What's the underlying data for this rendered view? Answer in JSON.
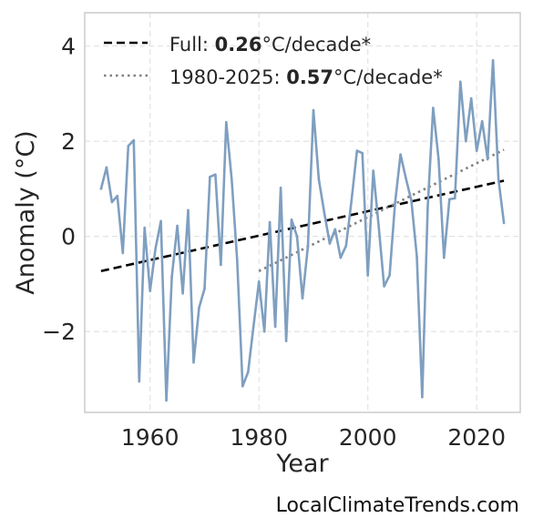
{
  "chart_data": {
    "type": "line",
    "xlabel": "Year",
    "ylabel": "Anomaly (°C)",
    "xlim": [
      1948,
      2028
    ],
    "ylim": [
      -3.7,
      4.7
    ],
    "xticks": [
      1960,
      1980,
      2000,
      2020
    ],
    "yticks": [
      4,
      2,
      0,
      -2
    ],
    "ytick_labels": [
      "4",
      "2",
      "0",
      "−2"
    ],
    "grid": true,
    "legend_position": "top-left",
    "colors": {
      "series": "#7f9fc0",
      "full_trend": "#000000",
      "recent_trend": "#808080"
    },
    "x": [
      1951,
      1952,
      1953,
      1954,
      1955,
      1956,
      1957,
      1958,
      1959,
      1960,
      1961,
      1962,
      1963,
      1964,
      1965,
      1966,
      1967,
      1968,
      1969,
      1970,
      1971,
      1972,
      1973,
      1974,
      1975,
      1976,
      1977,
      1978,
      1979,
      1980,
      1981,
      1982,
      1983,
      1984,
      1985,
      1986,
      1987,
      1988,
      1989,
      1990,
      1991,
      1992,
      1993,
      1994,
      1995,
      1996,
      1997,
      1998,
      1999,
      2000,
      2001,
      2002,
      2003,
      2004,
      2005,
      2006,
      2007,
      2008,
      2009,
      2010,
      2011,
      2012,
      2013,
      2014,
      2015,
      2016,
      2017,
      2018,
      2019,
      2020,
      2021,
      2022,
      2023,
      2024,
      2025
    ],
    "series": [
      {
        "values": [
          1.0,
          1.45,
          0.72,
          0.85,
          -0.35,
          1.9,
          2.02,
          -3.05,
          0.18,
          -1.15,
          -0.25,
          0.32,
          -3.45,
          -0.85,
          0.22,
          -1.2,
          0.55,
          -2.65,
          -1.5,
          -1.1,
          1.25,
          1.3,
          -0.6,
          2.4,
          1.2,
          -0.5,
          -3.15,
          -2.85,
          -1.9,
          -0.95,
          -2.0,
          0.3,
          -1.9,
          1.02,
          -2.2,
          0.35,
          0.0,
          -1.3,
          -0.2,
          2.65,
          1.2,
          0.5,
          -0.15,
          0.15,
          -0.45,
          -0.2,
          0.75,
          1.8,
          1.75,
          -0.82,
          1.38,
          0.2,
          -1.05,
          -0.82,
          0.7,
          1.72,
          1.22,
          0.75,
          -0.42,
          -3.38,
          0.6,
          2.7,
          1.62,
          -0.45,
          0.78,
          0.8,
          3.25,
          2.0,
          2.9,
          1.8,
          2.42,
          1.62,
          3.7,
          1.2,
          0.28
        ]
      }
    ],
    "trend_full": {
      "x": [
        1951,
        2025
      ],
      "y": [
        -0.73,
        1.17
      ]
    },
    "trend_recent": {
      "x": [
        1980,
        2025
      ],
      "y": [
        -0.73,
        1.82
      ]
    },
    "legend": [
      {
        "style": "dashed",
        "label_prefix": "Full: ",
        "label_value": "0.26",
        "label_suffix": "°C/decade*"
      },
      {
        "style": "dotted",
        "label_prefix": "1980-2025: ",
        "label_value": "0.57",
        "label_suffix": "°C/decade*"
      }
    ]
  },
  "watermark": "LocalClimateTrends.com"
}
